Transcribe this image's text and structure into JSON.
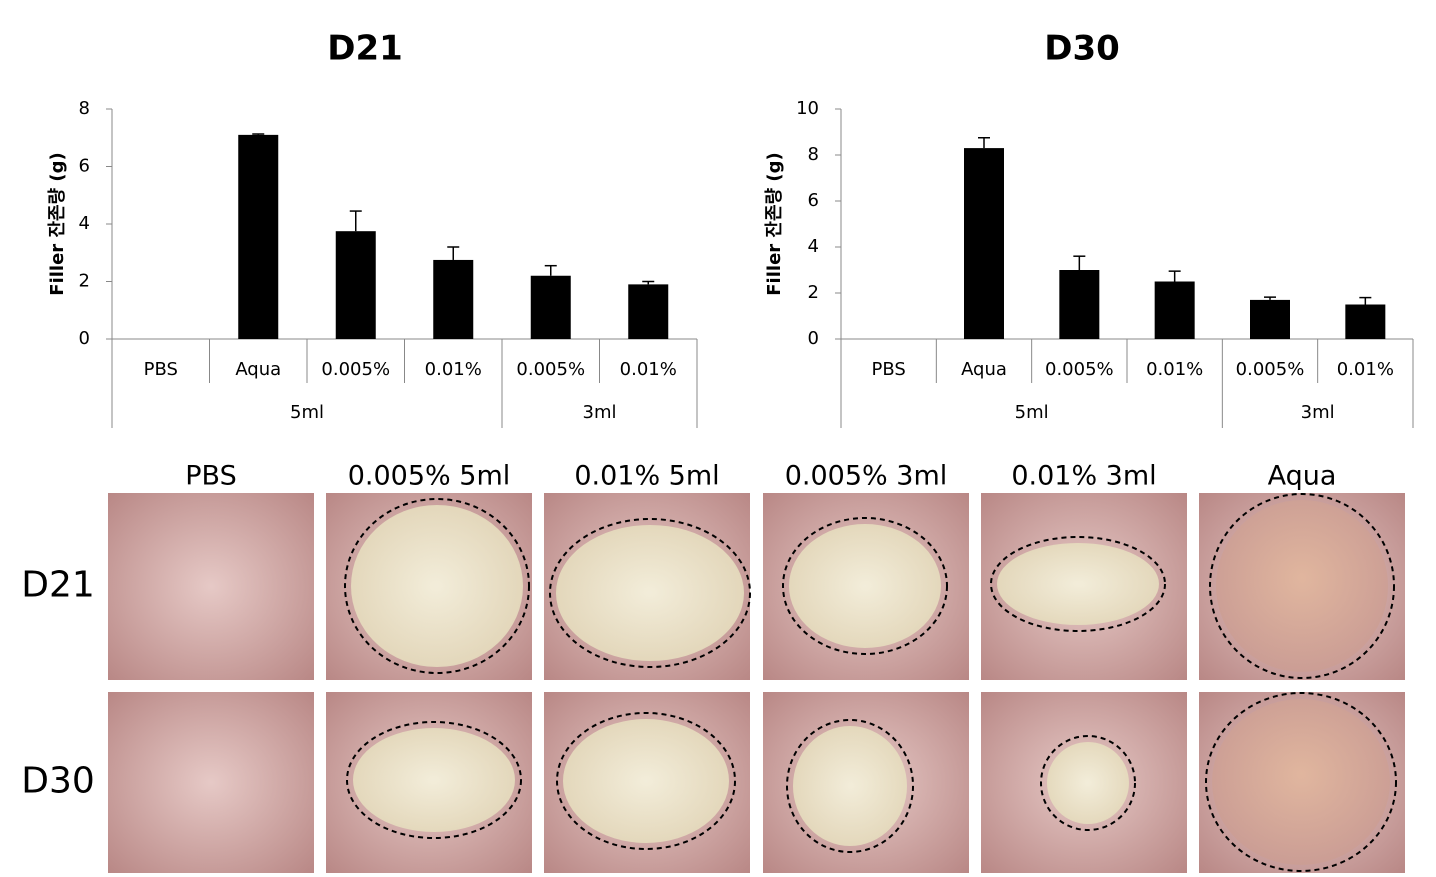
{
  "chart_data": [
    {
      "type": "bar",
      "title": "D21",
      "y_label": "Filler 잔존량 (g)",
      "color": "#000000",
      "ylim": [
        0,
        8
      ],
      "yticks": [
        0,
        2,
        4,
        6,
        8
      ],
      "groups": [
        {
          "name": "5ml",
          "categories": [
            "PBS",
            "Aqua",
            "0.005%",
            "0.01%"
          ],
          "values": [
            0,
            7.1,
            3.75,
            2.75
          ],
          "errors": [
            0,
            0.03,
            0.7,
            0.45
          ]
        },
        {
          "name": "3ml",
          "categories": [
            "0.005%",
            "0.01%"
          ],
          "values": [
            2.2,
            1.9
          ],
          "errors": [
            0.35,
            0.1
          ]
        }
      ]
    },
    {
      "type": "bar",
      "title": "D30",
      "y_label": "Filler 잔존량 (g)",
      "color": "#000000",
      "ylim": [
        0,
        10
      ],
      "yticks": [
        0,
        2,
        4,
        6,
        8,
        10
      ],
      "groups": [
        {
          "name": "5ml",
          "categories": [
            "PBS",
            "Aqua",
            "0.005%",
            "0.01%"
          ],
          "values": [
            0,
            8.3,
            3.0,
            2.5
          ],
          "errors": [
            0,
            0.45,
            0.6,
            0.45
          ]
        },
        {
          "name": "3ml",
          "categories": [
            "0.005%",
            "0.01%"
          ],
          "values": [
            1.7,
            1.5
          ],
          "errors": [
            0.12,
            0.3
          ]
        }
      ]
    }
  ],
  "photo_panel": {
    "column_labels": [
      "PBS",
      "0.005%  5ml",
      "0.01%  5ml",
      "0.005%  3ml",
      "0.01%  3ml",
      "Aqua"
    ],
    "row_labels": [
      "D21",
      "D30"
    ]
  }
}
